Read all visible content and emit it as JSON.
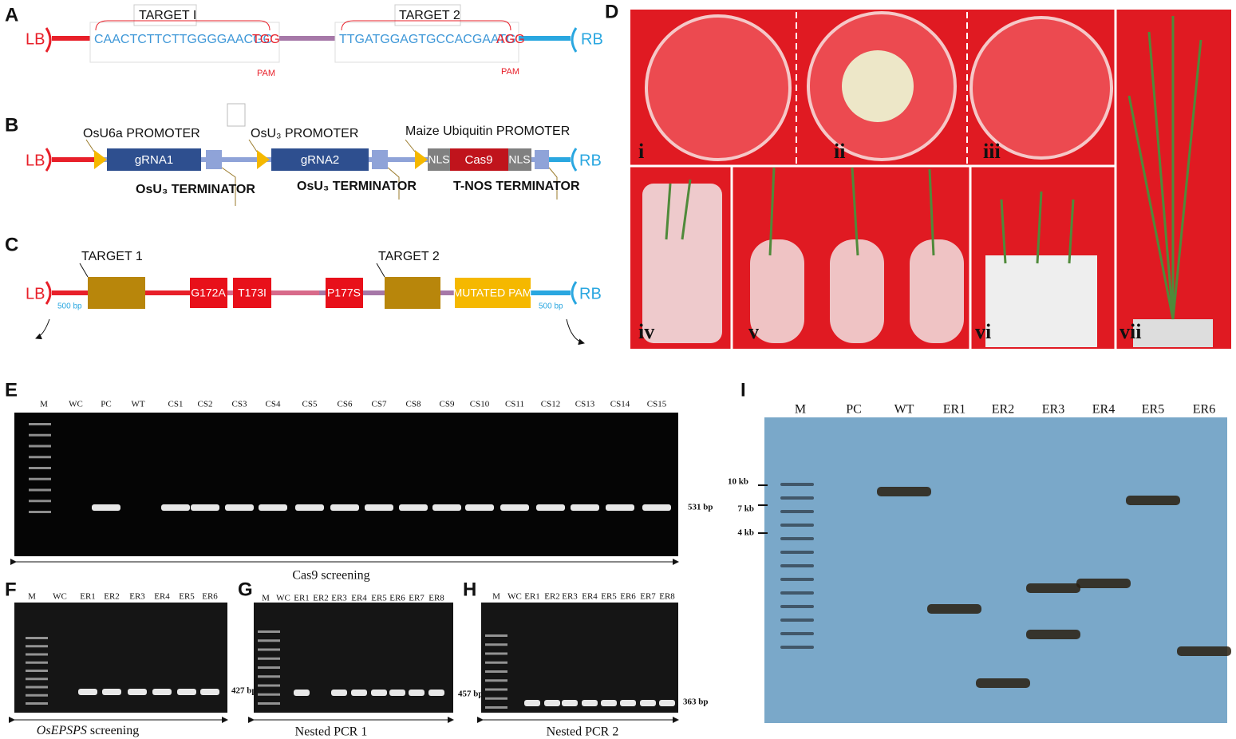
{
  "panel_a": {
    "label": "A",
    "lb": "LB",
    "rb": "RB",
    "target1": "TARGET I",
    "seq1": "CAACTCTTCTTGGGGAACGC",
    "pam_seq1": "TGG",
    "pam1": "PAM",
    "target2": "TARGET 2",
    "seq2": "TTGATGGAGTGCCACGAATG",
    "pam_seq2": "AGG",
    "pam2": "PAM"
  },
  "panel_b": {
    "label": "B",
    "lb": "LB",
    "rb": "RB",
    "promoter1": "OsU6a PROMOTER",
    "grna1": "gRNA1",
    "terminator1": "OsU₃ TERMINATOR",
    "promoter2": "OsU₃ PROMOTER",
    "grna2": "gRNA2",
    "terminator2": "OsU₃ TERMINATOR",
    "promoter3": "Maize Ubiquitin PROMOTER",
    "nls1": "NLS",
    "cas9": "Cas9",
    "nls2": "NLS",
    "terminator3": "T-NOS TERMINATOR"
  },
  "panel_c": {
    "label": "C",
    "lb": "LB",
    "rb": "RB",
    "target1": "TARGET 1",
    "mutation1": "G172A",
    "mutation2": "T173I",
    "mutation3": "P177S",
    "target2": "TARGET 2",
    "mutated_pam": "MUTATED PAM",
    "flank_left": "500 bp",
    "flank_right": "500 bp"
  },
  "panel_d": {
    "label": "D",
    "subpanels": [
      "i",
      "ii",
      "iii",
      "iv",
      "v",
      "vi",
      "vii"
    ]
  },
  "panel_e": {
    "label": "E",
    "lanes": [
      "M",
      "WC",
      "PC",
      "WT",
      "CS1",
      "CS2",
      "CS3",
      "CS4",
      "CS5",
      "CS6",
      "CS7",
      "CS8",
      "CS9",
      "CS10",
      "CS11",
      "CS12",
      "CS13",
      "CS14",
      "CS15"
    ],
    "band_size": "531 bp",
    "caption": "Cas9 screening"
  },
  "panel_f": {
    "label": "F",
    "lanes": [
      "M",
      "WC",
      "ER1",
      "ER2",
      "ER3",
      "ER4",
      "ER5",
      "ER6"
    ],
    "band_size": "427 bp",
    "caption_gene": "OsEPSPS",
    "caption_rest": " screening"
  },
  "panel_g": {
    "label": "G",
    "lanes": [
      "M",
      "WC",
      "ER1",
      "ER2",
      "ER3",
      "ER4",
      "ER5",
      "ER6",
      "ER7",
      "ER8"
    ],
    "band_size": "457 bp",
    "caption": "Nested PCR 1"
  },
  "panel_h": {
    "label": "H",
    "lanes": [
      "M",
      "WC",
      "ER1",
      "ER2",
      "ER3",
      "ER4",
      "ER5",
      "ER6",
      "ER7",
      "ER8"
    ],
    "band_size": "363 bp",
    "caption": "Nested PCR 2"
  },
  "panel_i": {
    "label": "I",
    "lanes": [
      "M",
      "PC",
      "WT",
      "ER1",
      "ER2",
      "ER3",
      "ER4",
      "ER5",
      "ER6"
    ],
    "markers": [
      "10 kb",
      "7 kb",
      "4 kb"
    ]
  }
}
